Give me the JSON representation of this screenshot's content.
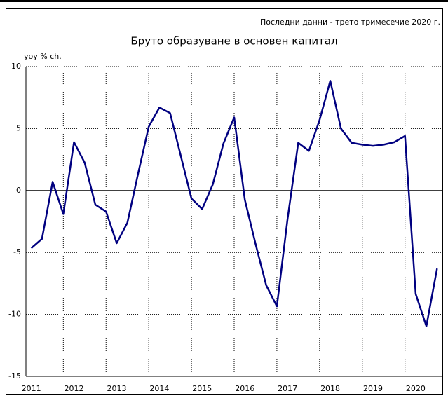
{
  "chart_data": {
    "type": "line",
    "title": "Бруто образуване в основен капитал",
    "subtitle": "Последни данни - трето тримесечие 2020 г.",
    "y_label": "yoy % ch.",
    "categories": [
      "2011",
      null,
      null,
      null,
      "2012",
      null,
      null,
      null,
      "2013",
      null,
      null,
      null,
      "2014",
      null,
      null,
      null,
      "2015",
      null,
      null,
      null,
      "2016",
      null,
      null,
      null,
      "2017",
      null,
      null,
      null,
      "2018",
      null,
      null,
      null,
      "2019",
      null,
      null,
      null,
      "2020",
      null,
      null
    ],
    "series": [
      {
        "name": "Бруто образуване в основен капитал",
        "color": "#000080",
        "values": [
          -4.65,
          -3.9,
          0.7,
          -1.9,
          3.9,
          2.25,
          -1.15,
          -1.7,
          -4.25,
          -2.6,
          1.35,
          5.15,
          6.7,
          6.25,
          2.8,
          -0.65,
          -1.5,
          0.5,
          3.8,
          5.9,
          -0.75,
          -4.3,
          -7.65,
          -9.35,
          -2.3,
          3.85,
          3.2,
          5.7,
          8.85,
          5.0,
          3.85,
          3.7,
          3.6,
          3.7,
          3.9,
          4.4,
          -8.35,
          -10.95,
          -6.3
        ]
      }
    ],
    "ylim": [
      -15,
      10
    ],
    "yticks": [
      -15,
      -10,
      -5,
      0,
      5,
      10
    ],
    "grid": true
  }
}
